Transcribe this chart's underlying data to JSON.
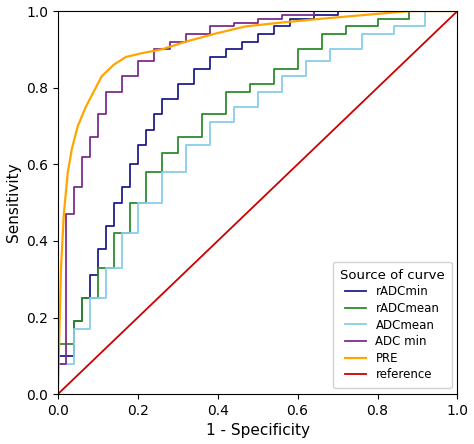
{
  "title": "",
  "xlabel": "1 - Specificity",
  "ylabel": "Sensitivity",
  "xlim": [
    0.0,
    1.0
  ],
  "ylim": [
    0.0,
    1.0
  ],
  "legend_title": "Source of curve",
  "legend_entries": [
    "rADCmin",
    "rADCmean",
    "ADCmean",
    "ADC min",
    "PRE",
    "reference"
  ],
  "colors": {
    "rADCmin": "#1F1F8F",
    "rADCmean": "#2E8B2E",
    "ADCmean": "#87CEEB",
    "ADC_min": "#7B2D8B",
    "PRE": "#FFA500",
    "reference": "#CC0000"
  },
  "rADCmin_fpr": [
    0.0,
    0.0,
    0.04,
    0.04,
    0.06,
    0.06,
    0.08,
    0.08,
    0.1,
    0.1,
    0.12,
    0.12,
    0.14,
    0.14,
    0.16,
    0.16,
    0.18,
    0.18,
    0.2,
    0.2,
    0.22,
    0.22,
    0.24,
    0.24,
    0.26,
    0.26,
    0.3,
    0.3,
    0.34,
    0.34,
    0.38,
    0.38,
    0.42,
    0.42,
    0.46,
    0.46,
    0.5,
    0.5,
    0.54,
    0.54,
    0.58,
    0.58,
    0.64,
    0.64,
    0.7,
    0.7,
    0.78,
    0.78,
    0.86,
    0.86,
    1.0
  ],
  "rADCmin_tpr": [
    0.0,
    0.1,
    0.1,
    0.19,
    0.19,
    0.25,
    0.25,
    0.31,
    0.31,
    0.38,
    0.38,
    0.44,
    0.44,
    0.5,
    0.5,
    0.54,
    0.54,
    0.6,
    0.6,
    0.65,
    0.65,
    0.69,
    0.69,
    0.73,
    0.73,
    0.77,
    0.77,
    0.81,
    0.81,
    0.85,
    0.85,
    0.88,
    0.88,
    0.9,
    0.9,
    0.92,
    0.92,
    0.94,
    0.94,
    0.96,
    0.96,
    0.98,
    0.98,
    0.99,
    0.99,
    1.0,
    1.0,
    1.0,
    1.0,
    1.0,
    1.0
  ],
  "rADCmean_fpr": [
    0.0,
    0.0,
    0.04,
    0.04,
    0.06,
    0.06,
    0.1,
    0.1,
    0.14,
    0.14,
    0.18,
    0.18,
    0.22,
    0.22,
    0.26,
    0.26,
    0.3,
    0.3,
    0.36,
    0.36,
    0.42,
    0.42,
    0.48,
    0.48,
    0.54,
    0.54,
    0.6,
    0.6,
    0.66,
    0.66,
    0.72,
    0.72,
    0.8,
    0.8,
    0.88,
    0.88,
    0.94,
    0.94,
    1.0
  ],
  "rADCmean_tpr": [
    0.0,
    0.13,
    0.13,
    0.19,
    0.19,
    0.25,
    0.25,
    0.33,
    0.33,
    0.42,
    0.42,
    0.5,
    0.5,
    0.58,
    0.58,
    0.63,
    0.63,
    0.67,
    0.67,
    0.73,
    0.73,
    0.79,
    0.79,
    0.81,
    0.81,
    0.85,
    0.85,
    0.9,
    0.9,
    0.94,
    0.94,
    0.96,
    0.96,
    0.98,
    0.98,
    1.0,
    1.0,
    1.0,
    1.0
  ],
  "ADCmean_fpr": [
    0.0,
    0.0,
    0.04,
    0.04,
    0.08,
    0.08,
    0.12,
    0.12,
    0.16,
    0.16,
    0.2,
    0.2,
    0.26,
    0.26,
    0.32,
    0.32,
    0.38,
    0.38,
    0.44,
    0.44,
    0.5,
    0.5,
    0.56,
    0.56,
    0.62,
    0.62,
    0.68,
    0.68,
    0.76,
    0.76,
    0.84,
    0.84,
    0.92,
    0.92,
    1.0
  ],
  "ADCmean_tpr": [
    0.0,
    0.08,
    0.08,
    0.17,
    0.17,
    0.25,
    0.25,
    0.33,
    0.33,
    0.42,
    0.42,
    0.5,
    0.5,
    0.58,
    0.58,
    0.65,
    0.65,
    0.71,
    0.71,
    0.75,
    0.75,
    0.79,
    0.79,
    0.83,
    0.83,
    0.87,
    0.87,
    0.9,
    0.9,
    0.94,
    0.94,
    0.96,
    0.96,
    1.0,
    1.0
  ],
  "ADC_min_fpr": [
    0.0,
    0.0,
    0.02,
    0.02,
    0.04,
    0.04,
    0.06,
    0.06,
    0.08,
    0.08,
    0.1,
    0.1,
    0.12,
    0.12,
    0.16,
    0.16,
    0.2,
    0.2,
    0.24,
    0.24,
    0.28,
    0.28,
    0.32,
    0.32,
    0.38,
    0.38,
    0.44,
    0.44,
    0.5,
    0.5,
    0.56,
    0.56,
    0.64,
    0.64,
    0.72,
    0.72,
    0.82,
    0.82,
    0.92,
    0.92,
    1.0
  ],
  "ADC_min_tpr": [
    0.0,
    0.08,
    0.08,
    0.47,
    0.47,
    0.54,
    0.54,
    0.62,
    0.62,
    0.67,
    0.67,
    0.73,
    0.73,
    0.79,
    0.79,
    0.83,
    0.83,
    0.87,
    0.87,
    0.9,
    0.9,
    0.92,
    0.92,
    0.94,
    0.94,
    0.96,
    0.96,
    0.97,
    0.97,
    0.98,
    0.98,
    0.99,
    0.99,
    1.0,
    1.0,
    1.0,
    1.0,
    1.0,
    1.0,
    1.0,
    1.0
  ],
  "PRE_fpr": [
    0.0,
    0.008,
    0.015,
    0.025,
    0.035,
    0.05,
    0.07,
    0.09,
    0.11,
    0.14,
    0.17,
    0.21,
    0.26,
    0.32,
    0.39,
    0.47,
    0.56,
    0.66,
    0.77,
    0.88,
    1.0
  ],
  "PRE_tpr": [
    0.0,
    0.33,
    0.47,
    0.58,
    0.64,
    0.7,
    0.75,
    0.79,
    0.83,
    0.86,
    0.88,
    0.89,
    0.9,
    0.92,
    0.94,
    0.96,
    0.97,
    0.98,
    0.99,
    1.0,
    1.0
  ],
  "xticks": [
    0.0,
    0.2,
    0.4,
    0.6,
    0.8,
    1.0
  ],
  "yticks": [
    0.0,
    0.2,
    0.4,
    0.6,
    0.8,
    1.0
  ],
  "background_color": "#ffffff"
}
